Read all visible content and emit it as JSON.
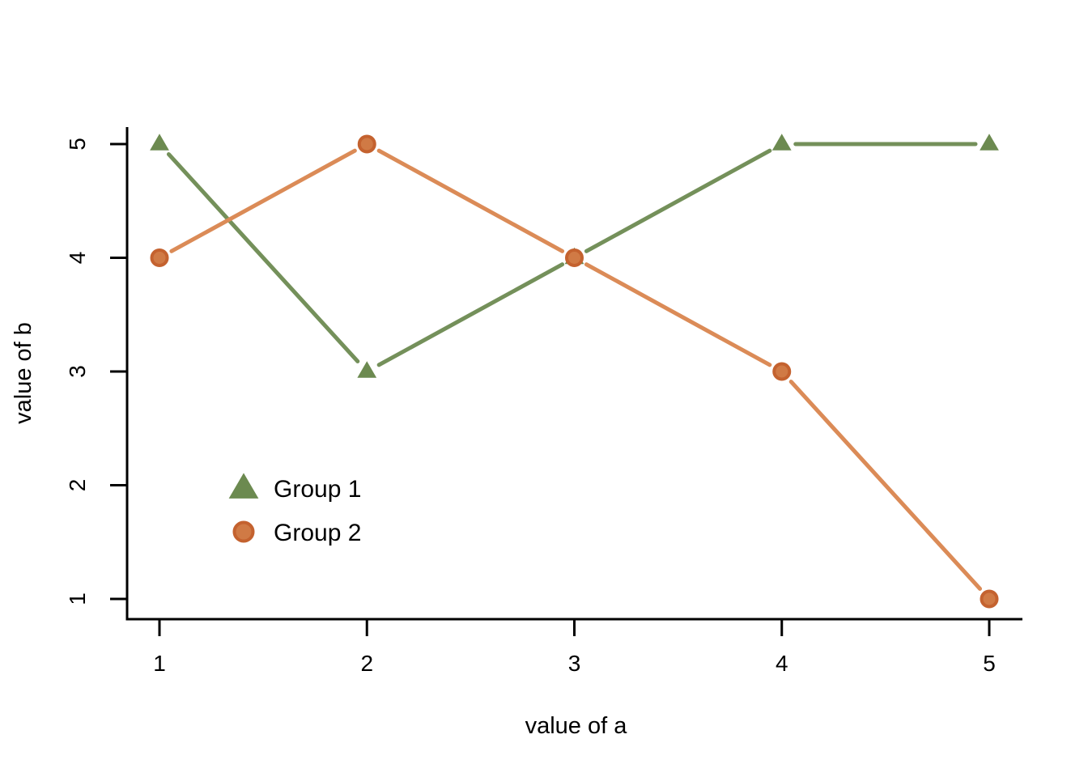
{
  "page": {
    "background": "#ffffff"
  },
  "chart_data": {
    "type": "line",
    "title": "",
    "xlabel": "value of a",
    "ylabel": "value of b",
    "x": [
      1,
      2,
      3,
      4,
      5
    ],
    "xlim": [
      1,
      5
    ],
    "ylim": [
      1,
      5
    ],
    "x_ticks": [
      "1",
      "2",
      "3",
      "4",
      "5"
    ],
    "y_ticks": [
      "1",
      "2",
      "3",
      "4",
      "5"
    ],
    "grid": false,
    "style": "points-and-lines-with-gaps",
    "axis_color": "#000000",
    "text_color": "#000000",
    "series": [
      {
        "name": "Group 1",
        "marker": "triangle",
        "values": [
          5,
          3,
          4,
          5,
          5
        ],
        "line_color": "#74905A",
        "marker_fill": "#6C8A50",
        "marker_stroke": "#6C8A50"
      },
      {
        "name": "Group 2",
        "marker": "circle",
        "values": [
          4,
          5,
          4,
          3,
          1
        ],
        "line_color": "#DB8B57",
        "marker_fill": "#D07A45",
        "marker_stroke": "#C4622F"
      }
    ],
    "legend": {
      "box": false,
      "position": "inside-left-middle",
      "items": [
        {
          "label": "Group 1",
          "marker": "triangle",
          "fill": "#6C8A50",
          "stroke": "#6C8A50"
        },
        {
          "label": "Group 2",
          "marker": "circle",
          "fill": "#D07A45",
          "stroke": "#C4622F"
        }
      ]
    }
  }
}
